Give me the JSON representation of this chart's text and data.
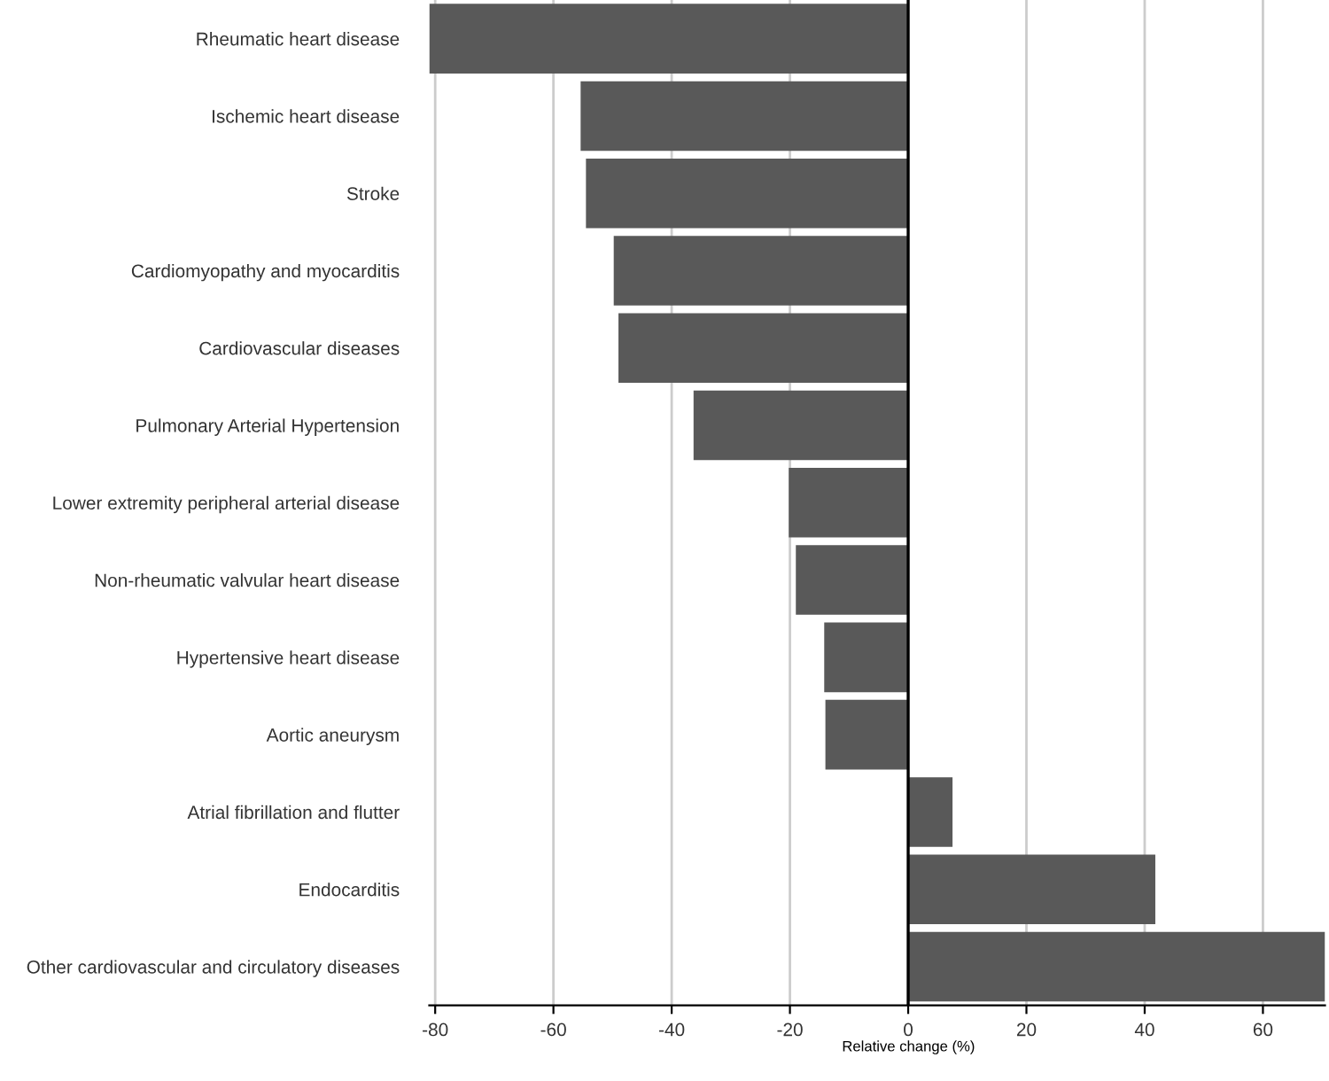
{
  "chart_data": {
    "type": "bar",
    "orientation": "horizontal",
    "xlabel": "Relative change (%)",
    "categories": [
      "Rheumatic heart disease",
      "Ischemic heart disease",
      "Stroke",
      "Cardiomyopathy and myocarditis",
      "Cardiovascular diseases",
      "Pulmonary Arterial Hypertension",
      "Lower extremity peripheral arterial disease",
      "Non-rheumatic valvular heart disease",
      "Hypertensive heart disease",
      "Aortic aneurysm",
      "Atrial fibrillation and flutter",
      "Endocarditis",
      "Other cardiovascular and circulatory diseases"
    ],
    "values": [
      -81,
      -55.4,
      -54.5,
      -49.8,
      -49.0,
      -36.3,
      -20.2,
      -19.0,
      -14.2,
      -14.0,
      7.5,
      41.8,
      70.5
    ],
    "color": "#595959",
    "xlim": [
      -81,
      70.5
    ],
    "xticks": [
      -80,
      -60,
      -40,
      -20,
      0,
      20,
      40,
      60
    ],
    "grid": "x",
    "ref_lines": [
      {
        "axis": "x",
        "value": 0,
        "color": "#000000"
      }
    ]
  }
}
